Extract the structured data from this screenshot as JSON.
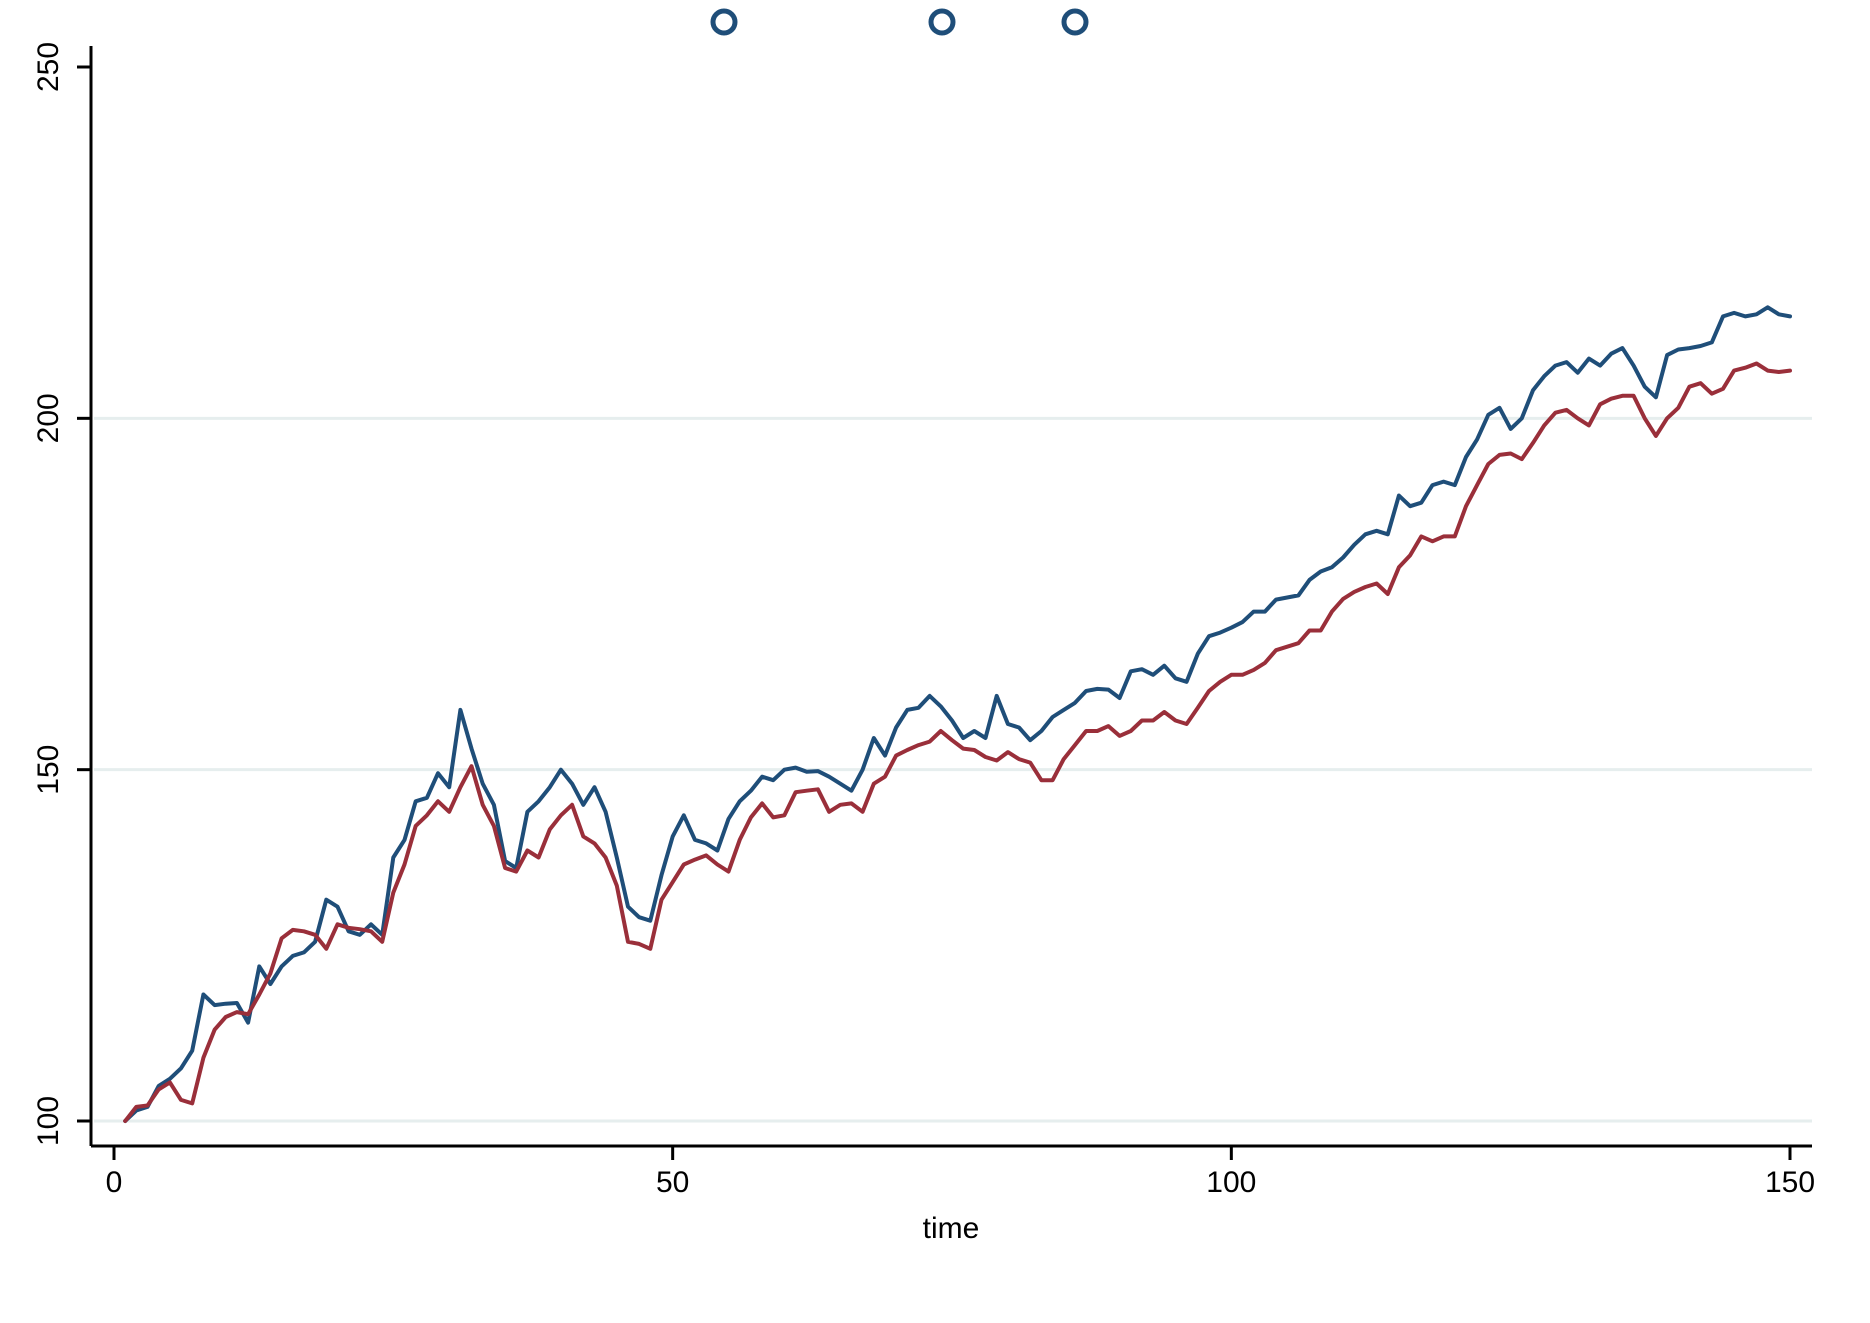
{
  "chart_data": {
    "type": "line",
    "title": "",
    "xlabel": "time",
    "ylabel": "",
    "xlim": [
      0,
      150
    ],
    "ylim": [
      100,
      250
    ],
    "xticks": [
      0,
      50,
      100,
      150
    ],
    "yticks": [
      100,
      150,
      200,
      250
    ],
    "grid": "horizontal",
    "colors": {
      "series_1": "#1f4e79",
      "series_2": "#9a2f3a",
      "grid": "#e6eeee",
      "axis": "#000000"
    },
    "series": [
      {
        "values": [
          [
            1,
            100
          ],
          [
            2,
            101.5
          ],
          [
            3,
            102
          ],
          [
            4,
            105
          ],
          [
            5,
            106
          ],
          [
            6,
            107.5
          ],
          [
            7,
            110
          ],
          [
            8,
            118
          ],
          [
            9,
            116.5
          ],
          [
            10,
            116.7
          ],
          [
            11,
            116.8
          ],
          [
            12,
            114
          ],
          [
            13,
            122
          ],
          [
            14,
            119.5
          ],
          [
            15,
            122
          ],
          [
            16,
            123.5
          ],
          [
            17,
            124
          ],
          [
            18,
            125.5
          ],
          [
            19,
            131.5
          ],
          [
            20,
            130.5
          ],
          [
            21,
            127
          ],
          [
            22,
            126.5
          ],
          [
            23,
            128
          ],
          [
            24,
            126.5
          ],
          [
            25,
            137.5
          ],
          [
            26,
            140
          ],
          [
            27,
            145.5
          ],
          [
            28,
            146
          ],
          [
            29,
            149.5
          ],
          [
            30,
            147.5
          ],
          [
            31,
            158.5
          ],
          [
            32,
            153
          ],
          [
            33,
            148
          ],
          [
            34,
            145
          ],
          [
            35,
            137
          ],
          [
            36,
            136
          ],
          [
            37,
            144
          ],
          [
            38,
            145.5
          ],
          [
            39,
            147.5
          ],
          [
            40,
            150
          ],
          [
            41,
            148
          ],
          [
            42,
            145
          ],
          [
            43,
            147.5
          ],
          [
            44,
            144
          ],
          [
            45,
            137.5
          ],
          [
            46,
            130.5
          ],
          [
            47,
            129
          ],
          [
            48,
            128.5
          ],
          [
            49,
            135
          ],
          [
            50,
            140.5
          ],
          [
            51,
            143.5
          ],
          [
            52,
            140
          ],
          [
            53,
            139.5
          ],
          [
            54,
            138.5
          ],
          [
            55,
            143
          ],
          [
            56,
            145.5
          ],
          [
            57,
            147
          ],
          [
            58,
            149
          ],
          [
            59,
            148.5
          ],
          [
            60,
            150
          ],
          [
            61,
            150.3
          ],
          [
            62,
            149.7
          ],
          [
            63,
            149.8
          ],
          [
            64,
            149
          ],
          [
            65,
            148
          ],
          [
            66,
            147
          ],
          [
            67,
            150
          ],
          [
            68,
            154.5
          ],
          [
            69,
            152
          ],
          [
            70,
            156
          ],
          [
            71,
            158.5
          ],
          [
            72,
            158.8
          ],
          [
            73,
            160.5
          ],
          [
            74,
            159
          ],
          [
            75,
            157
          ],
          [
            76,
            154.5
          ],
          [
            77,
            155.5
          ],
          [
            78,
            154.5
          ],
          [
            79,
            160.5
          ],
          [
            80,
            156.5
          ],
          [
            81,
            156
          ],
          [
            82,
            154.2
          ],
          [
            83,
            155.5
          ],
          [
            84,
            157.5
          ],
          [
            85,
            158.5
          ],
          [
            86,
            159.5
          ],
          [
            87,
            161.2
          ],
          [
            88,
            161.5
          ],
          [
            89,
            161.4
          ],
          [
            90,
            160.2
          ],
          [
            91,
            164
          ],
          [
            92,
            164.3
          ],
          [
            93,
            163.5
          ],
          [
            94,
            164.8
          ],
          [
            95,
            163
          ],
          [
            96,
            162.5
          ],
          [
            97,
            166.5
          ],
          [
            98,
            169
          ],
          [
            99,
            169.5
          ],
          [
            100,
            170.2
          ],
          [
            101,
            171
          ],
          [
            102,
            172.5
          ],
          [
            103,
            172.5
          ],
          [
            104,
            174.2
          ],
          [
            105,
            174.5
          ],
          [
            106,
            174.8
          ],
          [
            107,
            177
          ],
          [
            108,
            178.2
          ],
          [
            109,
            178.8
          ],
          [
            110,
            180.2
          ],
          [
            111,
            182
          ],
          [
            112,
            183.5
          ],
          [
            113,
            184
          ],
          [
            114,
            183.5
          ],
          [
            115,
            189
          ],
          [
            116,
            187.5
          ],
          [
            117,
            188
          ],
          [
            118,
            190.5
          ],
          [
            119,
            191
          ],
          [
            120,
            190.5
          ],
          [
            121,
            194.5
          ],
          [
            122,
            197
          ],
          [
            123,
            200.5
          ],
          [
            124,
            201.5
          ],
          [
            125,
            198.5
          ],
          [
            126,
            200
          ],
          [
            127,
            204
          ],
          [
            128,
            206
          ],
          [
            129,
            207.5
          ],
          [
            130,
            208
          ],
          [
            131,
            206.5
          ],
          [
            132,
            208.5
          ],
          [
            133,
            207.5
          ],
          [
            134,
            209.2
          ],
          [
            135,
            210
          ],
          [
            136,
            207.5
          ],
          [
            137,
            204.5
          ],
          [
            138,
            203
          ],
          [
            139,
            209
          ],
          [
            140,
            209.8
          ],
          [
            141,
            210
          ],
          [
            142,
            210.3
          ],
          [
            143,
            210.8
          ],
          [
            144,
            214.5
          ],
          [
            145,
            215
          ],
          [
            146,
            214.5
          ],
          [
            147,
            214.8
          ],
          [
            148,
            215.8
          ],
          [
            149,
            214.8
          ],
          [
            150,
            214.5
          ]
        ]
      },
      {
        "values": [
          [
            1,
            100
          ],
          [
            2,
            102
          ],
          [
            3,
            102.2
          ],
          [
            4,
            104.5
          ],
          [
            5,
            105.5
          ],
          [
            6,
            103
          ],
          [
            7,
            102.5
          ],
          [
            8,
            109
          ],
          [
            9,
            113
          ],
          [
            10,
            114.8
          ],
          [
            11,
            115.5
          ],
          [
            12,
            115.2
          ],
          [
            13,
            118
          ],
          [
            14,
            121
          ],
          [
            15,
            126
          ],
          [
            16,
            127.2
          ],
          [
            17,
            127
          ],
          [
            18,
            126.5
          ],
          [
            19,
            124.5
          ],
          [
            20,
            128
          ],
          [
            21,
            127.5
          ],
          [
            22,
            127.3
          ],
          [
            23,
            127
          ],
          [
            24,
            125.5
          ],
          [
            25,
            132.5
          ],
          [
            26,
            136.5
          ],
          [
            27,
            142
          ],
          [
            28,
            143.5
          ],
          [
            29,
            145.5
          ],
          [
            30,
            144
          ],
          [
            31,
            147.5
          ],
          [
            32,
            150.5
          ],
          [
            33,
            145
          ],
          [
            34,
            142
          ],
          [
            35,
            136
          ],
          [
            36,
            135.5
          ],
          [
            37,
            138.5
          ],
          [
            38,
            137.5
          ],
          [
            39,
            141.5
          ],
          [
            40,
            143.5
          ],
          [
            41,
            145
          ],
          [
            42,
            140.5
          ],
          [
            43,
            139.5
          ],
          [
            44,
            137.5
          ],
          [
            45,
            133.5
          ],
          [
            46,
            125.5
          ],
          [
            47,
            125.2
          ],
          [
            48,
            124.5
          ],
          [
            49,
            131.5
          ],
          [
            50,
            134
          ],
          [
            51,
            136.5
          ],
          [
            52,
            137.2
          ],
          [
            53,
            137.8
          ],
          [
            54,
            136.5
          ],
          [
            55,
            135.5
          ],
          [
            56,
            140
          ],
          [
            57,
            143.2
          ],
          [
            58,
            145.2
          ],
          [
            59,
            143.2
          ],
          [
            60,
            143.5
          ],
          [
            61,
            146.8
          ],
          [
            62,
            147
          ],
          [
            63,
            147.2
          ],
          [
            64,
            144
          ],
          [
            65,
            145
          ],
          [
            66,
            145.2
          ],
          [
            67,
            144
          ],
          [
            68,
            148
          ],
          [
            69,
            149
          ],
          [
            70,
            152
          ],
          [
            71,
            152.8
          ],
          [
            72,
            153.5
          ],
          [
            73,
            154
          ],
          [
            74,
            155.5
          ],
          [
            75,
            154.2
          ],
          [
            76,
            153
          ],
          [
            77,
            152.8
          ],
          [
            78,
            151.8
          ],
          [
            79,
            151.3
          ],
          [
            80,
            152.5
          ],
          [
            81,
            151.5
          ],
          [
            82,
            151
          ],
          [
            83,
            148.5
          ],
          [
            84,
            148.5
          ],
          [
            85,
            151.5
          ],
          [
            86,
            153.5
          ],
          [
            87,
            155.5
          ],
          [
            88,
            155.5
          ],
          [
            89,
            156.2
          ],
          [
            90,
            154.8
          ],
          [
            91,
            155.5
          ],
          [
            92,
            157
          ],
          [
            93,
            157
          ],
          [
            94,
            158.2
          ],
          [
            95,
            157
          ],
          [
            96,
            156.5
          ],
          [
            97,
            158.8
          ],
          [
            98,
            161.2
          ],
          [
            99,
            162.5
          ],
          [
            100,
            163.5
          ],
          [
            101,
            163.5
          ],
          [
            102,
            164.2
          ],
          [
            103,
            165.2
          ],
          [
            104,
            167
          ],
          [
            105,
            167.5
          ],
          [
            106,
            168
          ],
          [
            107,
            169.8
          ],
          [
            108,
            169.8
          ],
          [
            109,
            172.5
          ],
          [
            110,
            174.3
          ],
          [
            111,
            175.3
          ],
          [
            112,
            176
          ],
          [
            113,
            176.5
          ],
          [
            114,
            175
          ],
          [
            115,
            178.8
          ],
          [
            116,
            180.5
          ],
          [
            117,
            183.2
          ],
          [
            118,
            182.5
          ],
          [
            119,
            183.2
          ],
          [
            120,
            183.2
          ],
          [
            121,
            187.5
          ],
          [
            122,
            190.5
          ],
          [
            123,
            193.5
          ],
          [
            124,
            194.8
          ],
          [
            125,
            195
          ],
          [
            126,
            194.2
          ],
          [
            127,
            196.5
          ],
          [
            128,
            199
          ],
          [
            129,
            200.8
          ],
          [
            130,
            201.2
          ],
          [
            131,
            200
          ],
          [
            132,
            199
          ],
          [
            133,
            202
          ],
          [
            134,
            202.8
          ],
          [
            135,
            203.2
          ],
          [
            136,
            203.2
          ],
          [
            137,
            200
          ],
          [
            138,
            197.5
          ],
          [
            139,
            200
          ],
          [
            140,
            201.5
          ],
          [
            141,
            204.5
          ],
          [
            142,
            205
          ],
          [
            143,
            203.5
          ],
          [
            144,
            204.2
          ],
          [
            145,
            206.8
          ],
          [
            146,
            207.2
          ],
          [
            147,
            207.8
          ],
          [
            148,
            206.8
          ],
          [
            149,
            206.6
          ],
          [
            150,
            206.8
          ]
        ]
      }
    ]
  }
}
